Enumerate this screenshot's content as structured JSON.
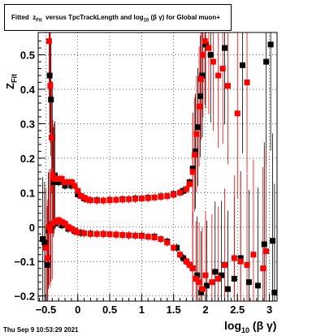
{
  "title": {
    "prefix": "Fitted",
    "z": "z",
    "z_sub": "Fit",
    "mid": "versus TpcTrackLength and log",
    "log_sub": "10",
    "suffix": "(β γ) for Global muon+"
  },
  "axis": {
    "ylabel_main": "Z",
    "ylabel_sub": "Fit",
    "xlabel_main": "log",
    "xlabel_sub": "10",
    "xlabel_suffix": "(β γ)"
  },
  "datestamp": "Thu Sep  9 10:53:29 2021",
  "colors": {
    "series1": "#ff0000",
    "series2": "#000000",
    "frame": "#000000",
    "grid": "#000000"
  },
  "chart_data": {
    "type": "scatter",
    "grid": true,
    "xlim": [
      -0.62,
      3.12
    ],
    "ylim": [
      -0.215,
      0.565
    ],
    "xticks": [
      -0.5,
      0,
      0.5,
      1,
      1.5,
      2,
      2.5,
      3
    ],
    "xtick_labels": [
      "−0.5",
      "0",
      "0.5",
      "1",
      "1.5",
      "2",
      "2.5",
      "3"
    ],
    "yticks": [
      -0.2,
      -0.1,
      0,
      0.1,
      0.2,
      0.3,
      0.4,
      0.5
    ],
    "ytick_labels": [
      "−0.2",
      "−0.1",
      "0",
      "0.1",
      "0.2",
      "0.3",
      "0.4",
      "0.5"
    ],
    "series": [
      {
        "color": "#ff0000",
        "points": [
          [
            -0.45,
            0.54
          ],
          [
            -0.43,
            0.41
          ],
          [
            -0.41,
            0.26
          ],
          [
            -0.39,
            0.15
          ],
          [
            -0.37,
            0.14
          ],
          [
            -0.33,
            0.14
          ],
          [
            -0.29,
            0.14
          ],
          [
            -0.25,
            0.14
          ],
          [
            -0.21,
            0.13
          ],
          [
            -0.17,
            0.13
          ],
          [
            -0.13,
            0.13
          ],
          [
            -0.09,
            0.13
          ],
          [
            -0.05,
            0.12
          ],
          [
            0.0,
            0.105
          ],
          [
            0.05,
            0.09
          ],
          [
            0.1,
            0.085
          ],
          [
            0.15,
            0.08
          ],
          [
            0.2,
            0.078
          ],
          [
            0.3,
            0.077
          ],
          [
            0.4,
            0.077
          ],
          [
            0.5,
            0.078
          ],
          [
            0.6,
            0.079
          ],
          [
            0.7,
            0.08
          ],
          [
            0.8,
            0.081
          ],
          [
            0.9,
            0.082
          ],
          [
            1.0,
            0.083
          ],
          [
            1.1,
            0.084
          ],
          [
            1.2,
            0.086
          ],
          [
            1.3,
            0.088
          ],
          [
            1.4,
            0.09
          ],
          [
            1.5,
            0.094
          ],
          [
            1.6,
            0.1
          ],
          [
            1.7,
            0.11
          ],
          [
            1.75,
            0.125
          ],
          [
            1.8,
            0.16
          ],
          [
            1.83,
            0.21
          ],
          [
            1.86,
            0.27
          ],
          [
            1.9,
            0.35
          ],
          [
            1.93,
            0.43
          ],
          [
            1.96,
            0.5
          ],
          [
            1.99,
            0.54
          ],
          [
            2.05,
            0.52
          ],
          [
            2.12,
            0.48
          ],
          [
            2.2,
            0.44
          ],
          [
            2.27,
            0.46
          ],
          [
            2.35,
            0.41
          ],
          [
            2.5,
            0.33
          ],
          [
            2.65,
            0.42
          ],
          [
            -0.5,
            -0.06
          ],
          [
            -0.47,
            -0.09
          ],
          [
            -0.45,
            0.0
          ],
          [
            -0.43,
            -0.01
          ],
          [
            -0.4,
            0.01
          ],
          [
            -0.35,
            0.015
          ],
          [
            -0.3,
            0.02
          ],
          [
            -0.25,
            0.015
          ],
          [
            -0.2,
            0.01
          ],
          [
            -0.15,
            0.0
          ],
          [
            -0.1,
            -0.005
          ],
          [
            -0.05,
            -0.01
          ],
          [
            0.0,
            -0.015
          ],
          [
            0.1,
            -0.018
          ],
          [
            0.2,
            -0.02
          ],
          [
            0.3,
            -0.02
          ],
          [
            0.4,
            -0.02
          ],
          [
            0.5,
            -0.021
          ],
          [
            0.6,
            -0.022
          ],
          [
            0.7,
            -0.023
          ],
          [
            0.8,
            -0.024
          ],
          [
            0.9,
            -0.025
          ],
          [
            1.0,
            -0.026
          ],
          [
            1.1,
            -0.028
          ],
          [
            1.2,
            -0.03
          ],
          [
            1.3,
            -0.035
          ],
          [
            1.4,
            -0.045
          ],
          [
            1.5,
            -0.06
          ],
          [
            1.6,
            -0.08
          ],
          [
            1.7,
            -0.1
          ],
          [
            1.75,
            -0.11
          ],
          [
            1.8,
            -0.12
          ],
          [
            1.85,
            -0.15
          ],
          [
            1.9,
            -0.16
          ],
          [
            1.95,
            -0.18
          ],
          [
            2.0,
            -0.14
          ],
          [
            2.1,
            -0.16
          ],
          [
            2.2,
            -0.15
          ],
          [
            2.3,
            -0.11
          ],
          [
            2.45,
            -0.09
          ],
          [
            2.55,
            -0.1
          ],
          [
            2.65,
            -0.11
          ],
          [
            2.75,
            -0.08
          ],
          [
            2.9,
            -0.12
          ],
          [
            2.95,
            -0.07
          ]
        ]
      },
      {
        "color": "#000000",
        "points": [
          [
            -0.44,
            0.44
          ],
          [
            -0.42,
            0.37
          ],
          [
            -0.4,
            0.26
          ],
          [
            -0.38,
            0.13
          ],
          [
            -0.36,
            0.15
          ],
          [
            -0.3,
            0.13
          ],
          [
            -0.2,
            0.12
          ],
          [
            -0.1,
            0.12
          ],
          [
            0.0,
            0.095
          ],
          [
            0.1,
            0.083
          ],
          [
            0.3,
            0.078
          ],
          [
            0.5,
            0.079
          ],
          [
            0.7,
            0.081
          ],
          [
            0.9,
            0.083
          ],
          [
            1.1,
            0.085
          ],
          [
            1.3,
            0.089
          ],
          [
            1.5,
            0.096
          ],
          [
            1.65,
            0.105
          ],
          [
            1.75,
            0.13
          ],
          [
            1.8,
            0.17
          ],
          [
            1.84,
            0.22
          ],
          [
            1.88,
            0.29
          ],
          [
            1.92,
            0.38
          ],
          [
            1.95,
            0.44
          ],
          [
            2.0,
            0.53
          ],
          [
            2.08,
            0.5
          ],
          [
            2.3,
            0.52
          ],
          [
            2.58,
            0.47
          ],
          [
            2.95,
            0.48
          ],
          [
            3.02,
            0.53
          ],
          [
            -0.55,
            -0.035
          ],
          [
            -0.52,
            -0.045
          ],
          [
            -0.48,
            -0.11
          ],
          [
            -0.46,
            -0.01
          ],
          [
            -0.42,
            0.005
          ],
          [
            -0.35,
            0.01
          ],
          [
            -0.25,
            0.005
          ],
          [
            -0.15,
            -0.005
          ],
          [
            -0.05,
            -0.012
          ],
          [
            0.05,
            -0.017
          ],
          [
            0.2,
            -0.019
          ],
          [
            0.4,
            -0.02
          ],
          [
            0.6,
            -0.022
          ],
          [
            0.8,
            -0.024
          ],
          [
            1.0,
            -0.025
          ],
          [
            1.2,
            -0.028
          ],
          [
            1.4,
            -0.042
          ],
          [
            1.55,
            -0.06
          ],
          [
            1.65,
            -0.09
          ],
          [
            1.7,
            -0.1
          ],
          [
            1.8,
            -0.12
          ],
          [
            1.87,
            -0.14
          ],
          [
            1.93,
            -0.19
          ],
          [
            2.02,
            -0.17
          ],
          [
            2.15,
            -0.13
          ],
          [
            2.25,
            -0.14
          ],
          [
            2.35,
            -0.18
          ],
          [
            2.45,
            -0.15
          ],
          [
            2.55,
            -0.09
          ],
          [
            2.68,
            -0.16
          ],
          [
            2.82,
            -0.17
          ],
          [
            2.92,
            -0.05
          ],
          [
            3.05,
            -0.04
          ],
          [
            3.08,
            -0.19
          ]
        ]
      }
    ]
  }
}
